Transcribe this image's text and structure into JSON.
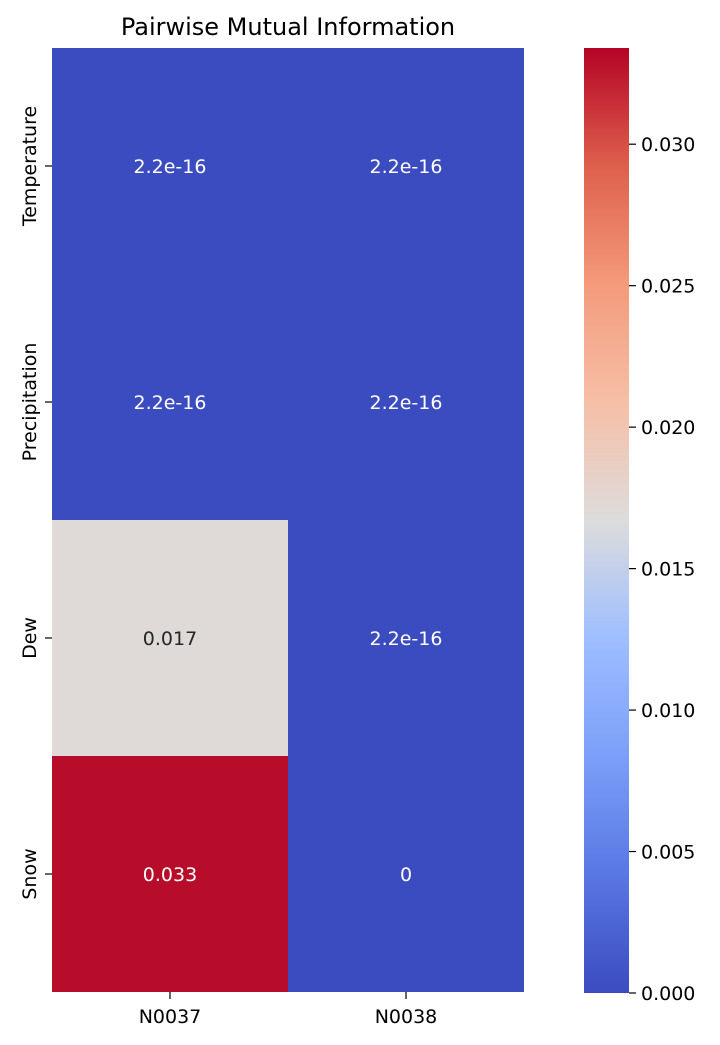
{
  "chart_data": {
    "type": "heatmap",
    "title": "Pairwise Mutual Information",
    "x_categories": [
      "N0037",
      "N0038"
    ],
    "y_categories": [
      "Temperature",
      "Precipitation",
      "Dew",
      "Snow"
    ],
    "values": [
      [
        2.2e-16,
        2.2e-16
      ],
      [
        2.2e-16,
        2.2e-16
      ],
      [
        0.017,
        2.2e-16
      ],
      [
        0.033,
        0
      ]
    ],
    "annotations": [
      [
        "2.2e-16",
        "2.2e-16"
      ],
      [
        "2.2e-16",
        "2.2e-16"
      ],
      [
        "0.017",
        "2.2e-16"
      ],
      [
        "0.033",
        "0"
      ]
    ],
    "colormap": "coolwarm",
    "vmin": 0,
    "vmax": 0.0334,
    "colorbar_ticks": [
      "0.000",
      "0.005",
      "0.010",
      "0.015",
      "0.020",
      "0.025",
      "0.030"
    ],
    "colorbar_tick_values": [
      0,
      0.005,
      0.01,
      0.015,
      0.02,
      0.025,
      0.03
    ]
  }
}
